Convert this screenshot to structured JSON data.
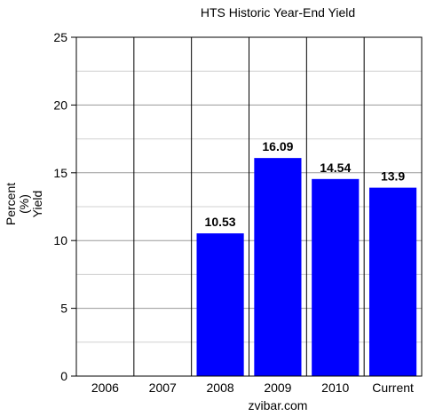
{
  "chart_data": {
    "type": "bar",
    "title": "HTS Historic Year-End Yield",
    "ylabel_lines": [
      "Percent",
      "(%)",
      "Yield"
    ],
    "xlabel": "",
    "categories": [
      "2006",
      "2007",
      "2008",
      "2009",
      "2010",
      "Current"
    ],
    "values": [
      null,
      null,
      10.53,
      16.09,
      14.54,
      13.9
    ],
    "value_labels": [
      "",
      "",
      "10.53",
      "16.09",
      "14.54",
      "13.9"
    ],
    "ylim": [
      0,
      25
    ],
    "yticks": [
      0,
      5,
      10,
      15,
      20,
      25
    ],
    "minor_step": 2.5,
    "grid": true,
    "legend": "none",
    "bar_color": "#0000ff"
  },
  "footer": {
    "source": "zvibar.com"
  }
}
